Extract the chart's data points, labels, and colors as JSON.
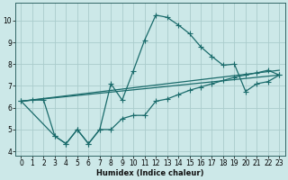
{
  "xlabel": "Humidex (Indice chaleur)",
  "bg_color": "#cce8e8",
  "grid_color": "#aacccc",
  "line_color": "#1a6b6b",
  "xlim": [
    -0.5,
    23.5
  ],
  "ylim": [
    3.8,
    10.8
  ],
  "xticks": [
    0,
    1,
    2,
    3,
    4,
    5,
    6,
    7,
    8,
    9,
    10,
    11,
    12,
    13,
    14,
    15,
    16,
    17,
    18,
    19,
    20,
    21,
    22,
    23
  ],
  "yticks": [
    4,
    5,
    6,
    7,
    8,
    9,
    10
  ],
  "line1_x": [
    0,
    1,
    2,
    3,
    4,
    5,
    6,
    7,
    8,
    9,
    10,
    11,
    12,
    13,
    14,
    15,
    16,
    17,
    18,
    19,
    20,
    21,
    22,
    23
  ],
  "line1_y": [
    6.3,
    6.35,
    6.35,
    4.7,
    4.35,
    5.0,
    4.35,
    5.0,
    7.1,
    6.35,
    7.7,
    9.1,
    10.25,
    10.15,
    9.8,
    9.4,
    8.8,
    8.35,
    7.95,
    8.0,
    6.75,
    7.1,
    7.2,
    7.5
  ],
  "line2_x": [
    0,
    3,
    4,
    5,
    6,
    7,
    8,
    9,
    10,
    11,
    12,
    13,
    14,
    15,
    16,
    17,
    18,
    19,
    20,
    21,
    22,
    23
  ],
  "line2_y": [
    6.3,
    4.7,
    4.35,
    5.0,
    4.35,
    5.0,
    5.0,
    5.5,
    5.65,
    5.65,
    6.3,
    6.4,
    6.6,
    6.8,
    6.95,
    7.1,
    7.25,
    7.4,
    7.5,
    7.6,
    7.72,
    7.5
  ],
  "line3_x": [
    0,
    23
  ],
  "line3_y": [
    6.3,
    7.5
  ],
  "line4_x": [
    0,
    23
  ],
  "line4_y": [
    6.3,
    7.72
  ],
  "spine_color": "#336666",
  "xlabel_fontsize": 6.0,
  "tick_fontsize": 5.5
}
